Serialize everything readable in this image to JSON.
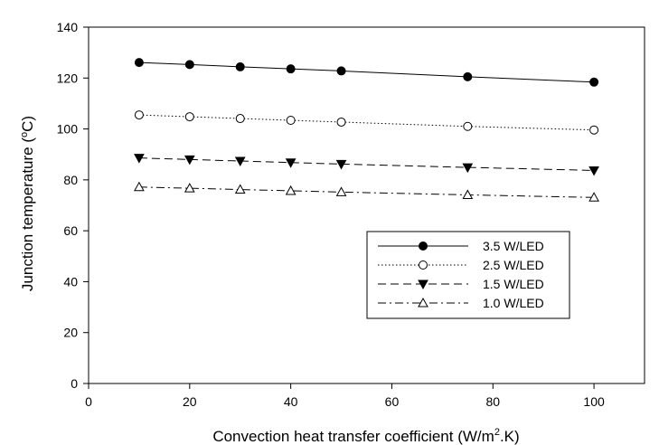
{
  "chart_data": {
    "type": "line",
    "xlabel": "Convection heat transfer coefficient (W/m",
    "xlabel_sup": "2",
    "xlabel_tail": ".K)",
    "ylabel_pre": "Junction temperature (",
    "ylabel_sup": "o",
    "ylabel_post": "C)",
    "xlim": [
      0,
      110
    ],
    "ylim": [
      0,
      140
    ],
    "xticks": [
      "0",
      "20",
      "40",
      "60",
      "80",
      "100"
    ],
    "yticks": [
      "0",
      "20",
      "40",
      "60",
      "80",
      "100",
      "120",
      "140"
    ],
    "x": [
      10,
      20,
      30,
      40,
      50,
      75,
      100
    ],
    "grid": false,
    "legend_position": "center-right",
    "series": [
      {
        "name": "3.5 W/LED",
        "marker": "filled-circle",
        "line": "solid",
        "values": [
          126.1,
          125.3,
          124.4,
          123.6,
          122.8,
          120.5,
          118.4
        ]
      },
      {
        "name": "2.5 W/LED",
        "marker": "open-circle",
        "line": "dotted",
        "values": [
          105.5,
          104.8,
          104.1,
          103.4,
          102.7,
          101.0,
          99.6
        ]
      },
      {
        "name": "1.5 W/LED",
        "marker": "filled-triangle-down",
        "line": "dashed",
        "values": [
          88.6,
          88.0,
          87.4,
          86.8,
          86.2,
          84.9,
          83.7
        ]
      },
      {
        "name": "1.0 W/LED",
        "marker": "open-triangle-up",
        "line": "dash-dot",
        "values": [
          77.2,
          76.7,
          76.2,
          75.7,
          75.2,
          74.1,
          73.1
        ]
      }
    ],
    "colors": {
      "line": "#000000",
      "background": "#ffffff"
    }
  }
}
